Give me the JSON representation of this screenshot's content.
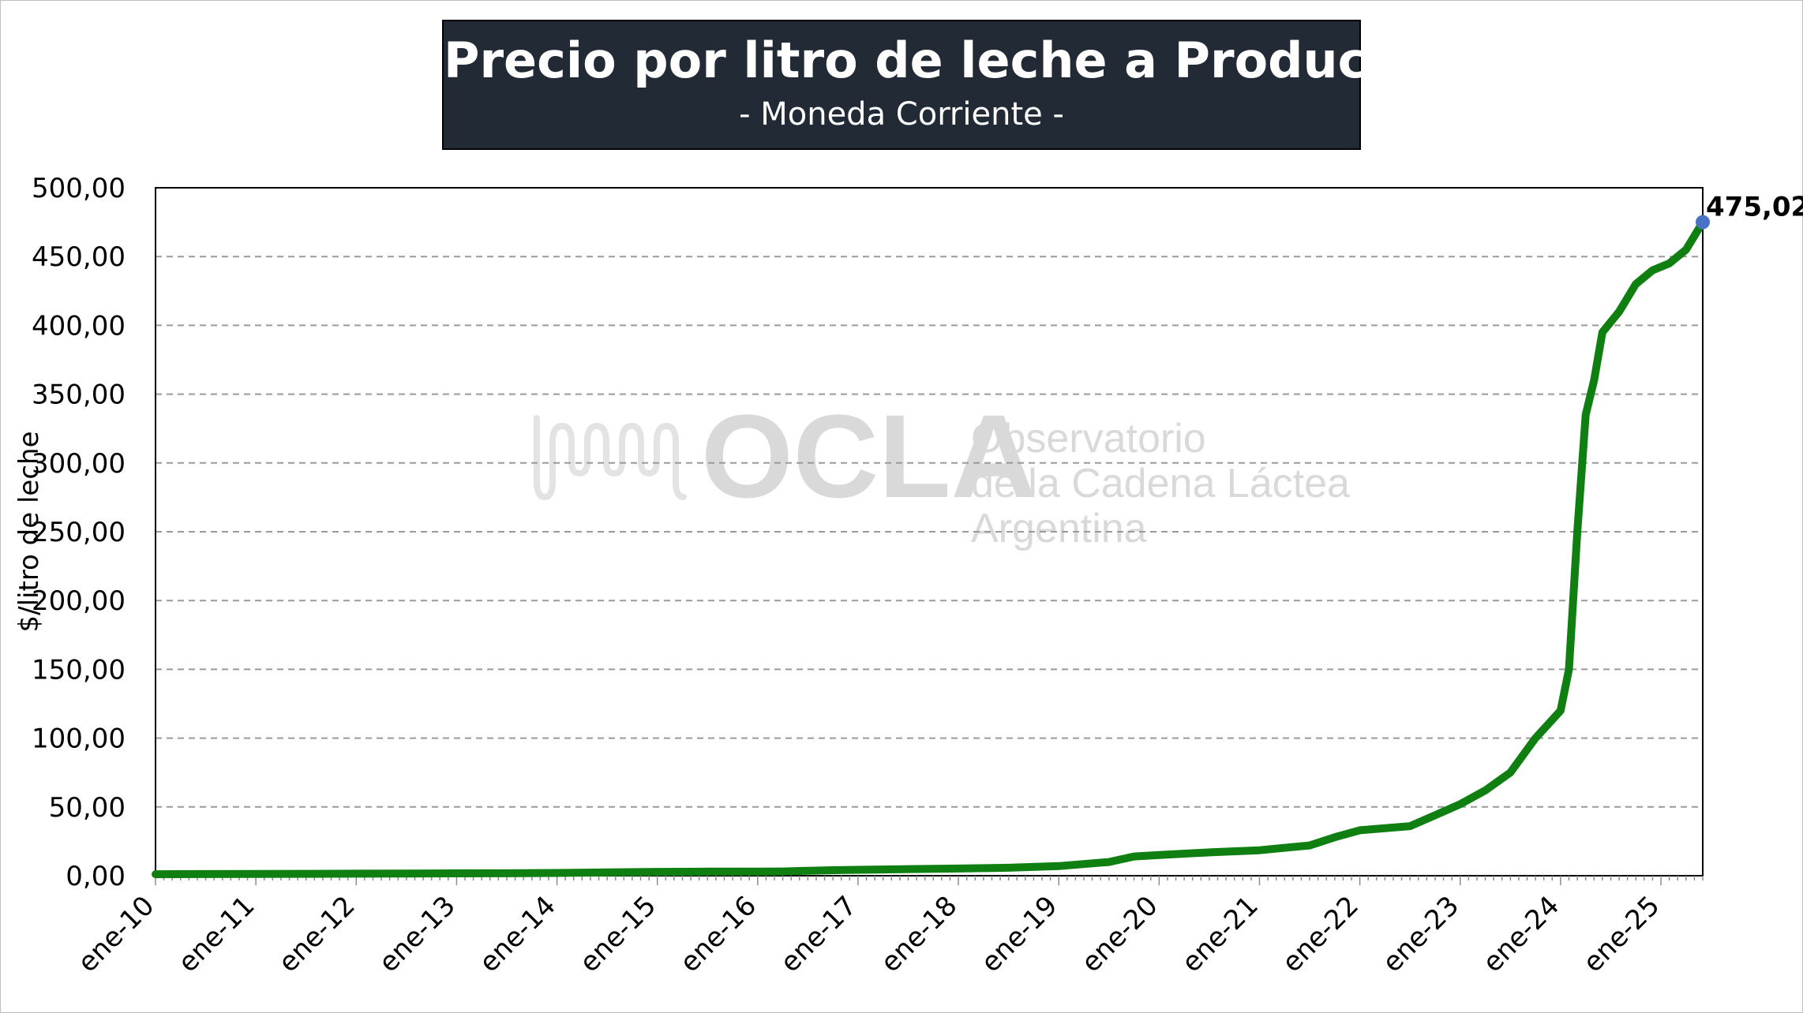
{
  "title": "Precio por litro de leche a Productor",
  "subtitle": "- Moneda Corriente -",
  "watermark": {
    "brand": "OCLA",
    "line1": "Observatorio",
    "line2": "de la Cadena Láctea",
    "line3": "Argentina"
  },
  "colors": {
    "line": "#0f7f12",
    "marker": "#4a72c4",
    "title_bg": "#222a35",
    "grid": "#9a9a9a"
  },
  "chart_data": {
    "type": "line",
    "title": "Precio por litro de leche a Productor",
    "subtitle": "- Moneda Corriente -",
    "xlabel": "",
    "ylabel": "$/litro de leche",
    "ylim": [
      0,
      500
    ],
    "yticks": [
      "0,00",
      "50,00",
      "100,00",
      "150,00",
      "200,00",
      "250,00",
      "300,00",
      "350,00",
      "400,00",
      "450,00",
      "500,00"
    ],
    "xticks": [
      "ene-10",
      "ene-11",
      "ene-12",
      "ene-13",
      "ene-14",
      "ene-15",
      "ene-16",
      "ene-17",
      "ene-18",
      "ene-19",
      "ene-20",
      "ene-21",
      "ene-22",
      "ene-23",
      "ene-24",
      "ene-25"
    ],
    "x_start": "ene-10",
    "grid": true,
    "last_value_label": "475,02",
    "series": [
      {
        "name": "",
        "points": [
          [
            "ene-10",
            1.1
          ],
          [
            "jul-10",
            1.2
          ],
          [
            "ene-11",
            1.3
          ],
          [
            "jul-11",
            1.4
          ],
          [
            "ene-12",
            1.5
          ],
          [
            "jul-12",
            1.6
          ],
          [
            "ene-13",
            1.7
          ],
          [
            "jul-13",
            1.8
          ],
          [
            "ene-14",
            2.0
          ],
          [
            "jul-14",
            2.4
          ],
          [
            "ene-15",
            2.8
          ],
          [
            "jul-15",
            3.0
          ],
          [
            "ene-16",
            3.0
          ],
          [
            "abr-16",
            3.1
          ],
          [
            "jul-16",
            3.6
          ],
          [
            "oct-16",
            4.0
          ],
          [
            "ene-17",
            4.3
          ],
          [
            "jul-17",
            4.8
          ],
          [
            "ene-18",
            5.2
          ],
          [
            "jul-18",
            5.8
          ],
          [
            "ene-19",
            7.0
          ],
          [
            "abr-19",
            8.5
          ],
          [
            "jul-19",
            10.0
          ],
          [
            "oct-19",
            14.0
          ],
          [
            "ene-20",
            15.0
          ],
          [
            "jul-20",
            17.0
          ],
          [
            "ene-21",
            18.5
          ],
          [
            "jul-21",
            22.0
          ],
          [
            "oct-21",
            28.0
          ],
          [
            "ene-22",
            33.0
          ],
          [
            "jul-22",
            36.0
          ],
          [
            "oct-22",
            44.0
          ],
          [
            "ene-23",
            52.0
          ],
          [
            "abr-23",
            62.0
          ],
          [
            "jul-23",
            75.0
          ],
          [
            "oct-23",
            100.0
          ],
          [
            "ene-24",
            120.0
          ],
          [
            "feb-24",
            150.0
          ],
          [
            "mar-24",
            250.0
          ],
          [
            "abr-24",
            335.0
          ],
          [
            "may-24",
            360.0
          ],
          [
            "jun-24",
            395.0
          ],
          [
            "ago-24",
            410.0
          ],
          [
            "oct-24",
            430.0
          ],
          [
            "dic-24",
            440.0
          ],
          [
            "feb-25",
            445.0
          ],
          [
            "abr-25",
            455.0
          ],
          [
            "jun-25",
            475.02
          ]
        ]
      }
    ]
  }
}
